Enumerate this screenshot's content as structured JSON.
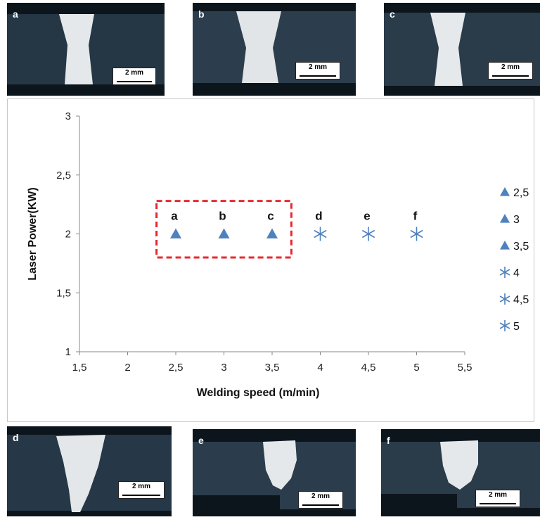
{
  "micrographs": {
    "top": [
      {
        "label": "a",
        "scale": "2 mm"
      },
      {
        "label": "b",
        "scale": "2 mm"
      },
      {
        "label": "c",
        "scale": "2 mm"
      }
    ],
    "bottom": [
      {
        "label": "d",
        "scale": "2 mm"
      },
      {
        "label": "e",
        "scale": "2 mm"
      },
      {
        "label": "f",
        "scale": "2 mm"
      }
    ]
  },
  "chart_data": {
    "type": "scatter",
    "xlabel": "Welding speed (m/min)",
    "ylabel": "Laser Power(KW)",
    "xlim": [
      1.5,
      5.5
    ],
    "ylim": [
      1,
      3
    ],
    "xticks": [
      "1,5",
      "2",
      "2,5",
      "3",
      "3,5",
      "4",
      "4,5",
      "5",
      "5,5"
    ],
    "yticks": [
      "1",
      "1,5",
      "2",
      "2,5",
      "3"
    ],
    "grid": false,
    "legend_position": "right",
    "marker_color": "#4f81bd",
    "highlight_color": "#e8282d",
    "series": [
      {
        "name": "2,5",
        "x": 2.5,
        "y": 2,
        "marker": "triangle",
        "label": "a"
      },
      {
        "name": "3",
        "x": 3,
        "y": 2,
        "marker": "triangle",
        "label": "b"
      },
      {
        "name": "3,5",
        "x": 3.5,
        "y": 2,
        "marker": "triangle",
        "label": "c"
      },
      {
        "name": "4",
        "x": 4,
        "y": 2,
        "marker": "star",
        "label": "d"
      },
      {
        "name": "4,5",
        "x": 4.5,
        "y": 2,
        "marker": "star",
        "label": "e"
      },
      {
        "name": "5",
        "x": 5,
        "y": 2,
        "marker": "star",
        "label": "f"
      }
    ],
    "highlight_box": {
      "x_range": [
        2.3,
        3.7
      ],
      "y_range": [
        1.8,
        2.28
      ]
    }
  }
}
